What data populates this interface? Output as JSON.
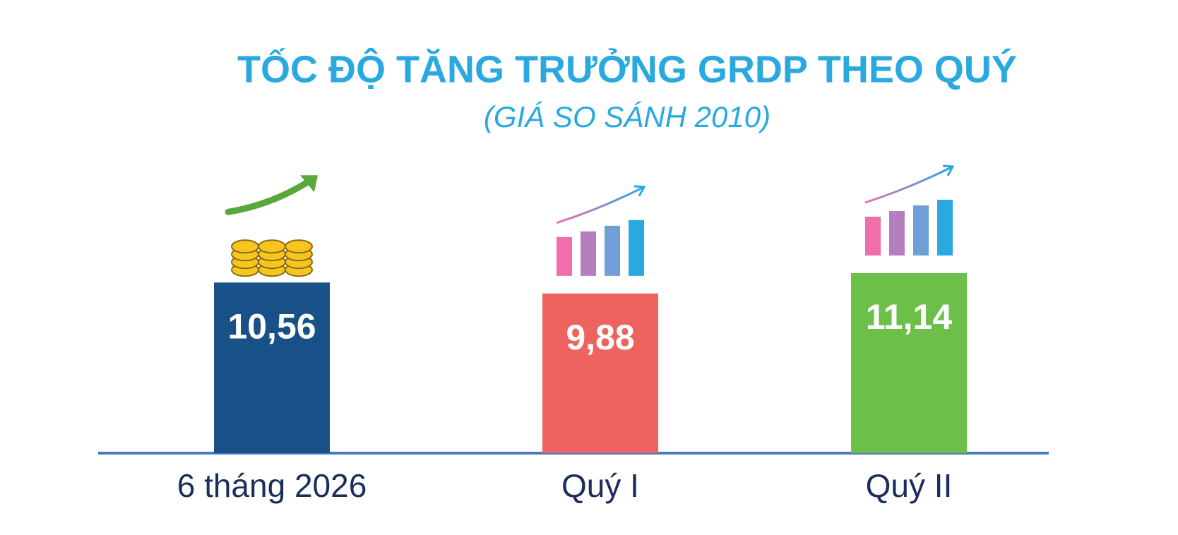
{
  "chart_data": {
    "type": "bar",
    "title": "TỐC ĐỘ TĂNG TRƯỞNG GRDP THEO QUÝ",
    "subtitle": "(GIÁ SO SÁNH 2010)",
    "categories": [
      "6 tháng 2026",
      "Quý I",
      "Quý II"
    ],
    "values": [
      10.56,
      9.88,
      11.14
    ],
    "value_labels": [
      "10,56",
      "9,88",
      "11,14"
    ],
    "colors": [
      "#175187",
      "#ee6360",
      "#6cc04a"
    ]
  }
}
